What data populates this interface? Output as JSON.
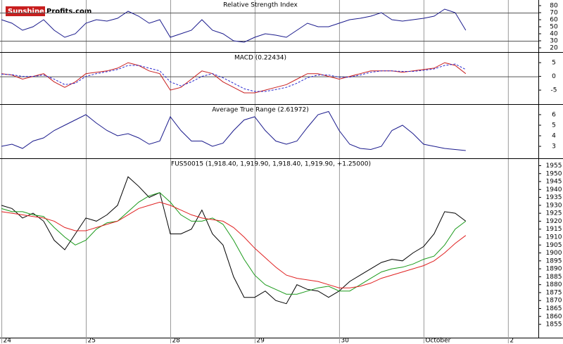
{
  "logo": [
    "Sunshine",
    "Profits.com"
  ],
  "chart_data": [
    {
      "type": "line",
      "title": "Relative Strength Index",
      "x": [
        0,
        0.125,
        0.25,
        0.375,
        0.5,
        0.625,
        0.75,
        0.875,
        1,
        1.125,
        1.25,
        1.375,
        1.5,
        1.625,
        1.75,
        1.875,
        2,
        2.125,
        2.25,
        2.375,
        2.5,
        2.625,
        2.75,
        2.875,
        3,
        3.125,
        3.25,
        3.375,
        3.5,
        3.625,
        3.75,
        3.875,
        4,
        4.125,
        4.25,
        4.375,
        4.5,
        4.625,
        4.75,
        4.875,
        5,
        5.125,
        5.25,
        5.375,
        5.5
      ],
      "xlim": [
        -0.017,
        6.36
      ],
      "xticks": [
        0,
        1,
        2,
        3,
        4,
        5,
        6
      ],
      "ylim": [
        14,
        88
      ],
      "yticks": [
        80,
        70,
        60,
        50,
        40,
        30,
        20
      ],
      "reference_lines": [
        70,
        30
      ],
      "series": [
        {
          "color": "#1a1a8c",
          "values": [
            60,
            55,
            45,
            50,
            60,
            45,
            35,
            40,
            55,
            60,
            58,
            62,
            72,
            65,
            55,
            60,
            35,
            40,
            45,
            60,
            45,
            40,
            30,
            28,
            35,
            40,
            38,
            35,
            45,
            55,
            50,
            50,
            55,
            60,
            62,
            65,
            70,
            60,
            58,
            60,
            62,
            65,
            75,
            70,
            45
          ]
        }
      ]
    },
    {
      "type": "line",
      "title": "MACD (0.22434)",
      "x": [
        0,
        0.125,
        0.25,
        0.375,
        0.5,
        0.625,
        0.75,
        0.875,
        1,
        1.125,
        1.25,
        1.375,
        1.5,
        1.625,
        1.75,
        1.875,
        2,
        2.125,
        2.25,
        2.375,
        2.5,
        2.625,
        2.75,
        2.875,
        3,
        3.125,
        3.25,
        3.375,
        3.5,
        3.625,
        3.75,
        3.875,
        4,
        4.125,
        4.25,
        4.375,
        4.5,
        4.625,
        4.75,
        4.875,
        5,
        5.125,
        5.25,
        5.375,
        5.5
      ],
      "xlim": [
        -0.017,
        6.36
      ],
      "xticks": [
        0,
        1,
        2,
        3,
        4,
        5,
        6
      ],
      "ylim": [
        -10.1,
        8.6
      ],
      "yticks": [
        5,
        0,
        -5
      ],
      "reference_lines": [
        0
      ],
      "series": [
        {
          "color": "#c81e1e",
          "values": [
            1,
            0.5,
            -1,
            0,
            1,
            -2,
            -4,
            -2,
            1,
            1.5,
            2,
            3,
            5,
            4,
            2,
            1,
            -5,
            -4,
            -1,
            2,
            1,
            -2,
            -4,
            -6,
            -6,
            -5,
            -4,
            -3,
            -1,
            1,
            1,
            0,
            -1,
            0,
            1,
            2,
            2,
            2,
            1.5,
            2,
            2.5,
            3,
            5,
            4,
            1
          ]
        },
        {
          "color": "#2a2ad0",
          "dashed": true,
          "values": [
            0.8,
            0.6,
            0,
            0,
            0.5,
            -1,
            -3,
            -2.5,
            0,
            1,
            1.7,
            2.5,
            4,
            4,
            3,
            2,
            -2,
            -3.5,
            -2,
            0,
            1,
            -0.5,
            -2.5,
            -4.5,
            -5.5,
            -5.5,
            -4.8,
            -4,
            -2.5,
            -0.5,
            0.5,
            0.5,
            -0.3,
            -0.3,
            0.5,
            1.5,
            2,
            2,
            1.8,
            1.8,
            2.2,
            2.7,
            4,
            4.5,
            2.5
          ]
        }
      ]
    },
    {
      "type": "line",
      "title": "Average True Range (2.61972)",
      "x": [
        0,
        0.125,
        0.25,
        0.375,
        0.5,
        0.625,
        0.75,
        0.875,
        1,
        1.125,
        1.25,
        1.375,
        1.5,
        1.625,
        1.75,
        1.875,
        2,
        2.125,
        2.25,
        2.375,
        2.5,
        2.625,
        2.75,
        2.875,
        3,
        3.125,
        3.25,
        3.375,
        3.5,
        3.625,
        3.75,
        3.875,
        4,
        4.125,
        4.25,
        4.375,
        4.5,
        4.625,
        4.75,
        4.875,
        5,
        5.125,
        5.25,
        5.375,
        5.5
      ],
      "xlim": [
        -0.017,
        6.36
      ],
      "xticks": [
        0,
        1,
        2,
        3,
        4,
        5,
        6
      ],
      "ylim": [
        1.87,
        6.93
      ],
      "yticks": [
        6,
        5,
        4,
        3
      ],
      "series": [
        {
          "color": "#1a1a8c",
          "values": [
            3,
            3.2,
            2.8,
            3.5,
            3.8,
            4.5,
            5,
            5.5,
            6,
            5.2,
            4.5,
            4,
            4.2,
            3.8,
            3.2,
            3.5,
            5.8,
            4.5,
            3.5,
            3.5,
            3,
            3.3,
            4.5,
            5.5,
            5.8,
            4.5,
            3.5,
            3.2,
            3.5,
            4.8,
            6,
            6.3,
            4.5,
            3.2,
            2.8,
            2.7,
            3,
            4.5,
            5,
            4.2,
            3.2,
            3,
            2.8,
            2.7,
            2.6
          ]
        }
      ]
    },
    {
      "type": "line",
      "title": "FUS50015 (1,918.40, 1,919.90, 1,918.40, 1,919.90, +1.25000)",
      "x": [
        0,
        0.125,
        0.25,
        0.375,
        0.5,
        0.625,
        0.75,
        0.875,
        1,
        1.125,
        1.25,
        1.375,
        1.5,
        1.625,
        1.75,
        1.875,
        2,
        2.125,
        2.25,
        2.375,
        2.5,
        2.625,
        2.75,
        2.875,
        3,
        3.125,
        3.25,
        3.375,
        3.5,
        3.625,
        3.75,
        3.875,
        4,
        4.125,
        4.25,
        4.375,
        4.5,
        4.625,
        4.75,
        4.875,
        5,
        5.125,
        5.25,
        5.375,
        5.5
      ],
      "xlim": [
        -0.017,
        6.36
      ],
      "xticks": [
        {
          "value": 0,
          "label": "24"
        },
        {
          "value": 1,
          "label": "25"
        },
        {
          "value": 2,
          "label": "28"
        },
        {
          "value": 3,
          "label": "29"
        },
        {
          "value": 4,
          "label": "30"
        },
        {
          "value": 5,
          "label": "October"
        },
        {
          "value": 6,
          "label": "2"
        }
      ],
      "ylim": [
        1846.6,
        1959.2
      ],
      "yticks": [
        1955,
        1950,
        1945,
        1940,
        1935,
        1930,
        1925,
        1920,
        1915,
        1910,
        1905,
        1900,
        1895,
        1890,
        1885,
        1880,
        1875,
        1870,
        1865,
        1860,
        1855
      ],
      "series": [
        {
          "color": "#000000",
          "values": [
            1930,
            1928,
            1922,
            1925,
            1920,
            1908,
            1902,
            1912,
            1922,
            1920,
            1924,
            1930,
            1948,
            1942,
            1935,
            1938,
            1912,
            1912,
            1915,
            1927,
            1912,
            1905,
            1885,
            1872,
            1872,
            1876,
            1870,
            1868,
            1880,
            1877,
            1876,
            1872,
            1876,
            1882,
            1886,
            1890,
            1894,
            1896,
            1895,
            1900,
            1904,
            1912,
            1926,
            1925,
            1920
          ]
        },
        {
          "color": "#1a9a1a",
          "values": [
            1928,
            1926,
            1926,
            1924,
            1923,
            1916,
            1910,
            1905,
            1908,
            1915,
            1919,
            1920,
            1926,
            1932,
            1936,
            1938,
            1932,
            1924,
            1920,
            1920,
            1922,
            1918,
            1908,
            1896,
            1886,
            1880,
            1877,
            1874,
            1874,
            1876,
            1878,
            1879,
            1876,
            1876,
            1880,
            1884,
            1888,
            1890,
            1891,
            1893,
            1896,
            1898,
            1905,
            1915,
            1920
          ]
        },
        {
          "color": "#e02020",
          "values": [
            1926,
            1925,
            1924,
            1923,
            1922,
            1920,
            1916,
            1914,
            1914,
            1916,
            1918,
            1920,
            1924,
            1928,
            1930,
            1932,
            1930,
            1927,
            1924,
            1922,
            1921,
            1920,
            1916,
            1910,
            1903,
            1897,
            1891,
            1886,
            1884,
            1883,
            1882,
            1880,
            1878,
            1878,
            1879,
            1881,
            1884,
            1886,
            1888,
            1890,
            1892,
            1895,
            1900,
            1906,
            1911
          ]
        }
      ]
    }
  ]
}
